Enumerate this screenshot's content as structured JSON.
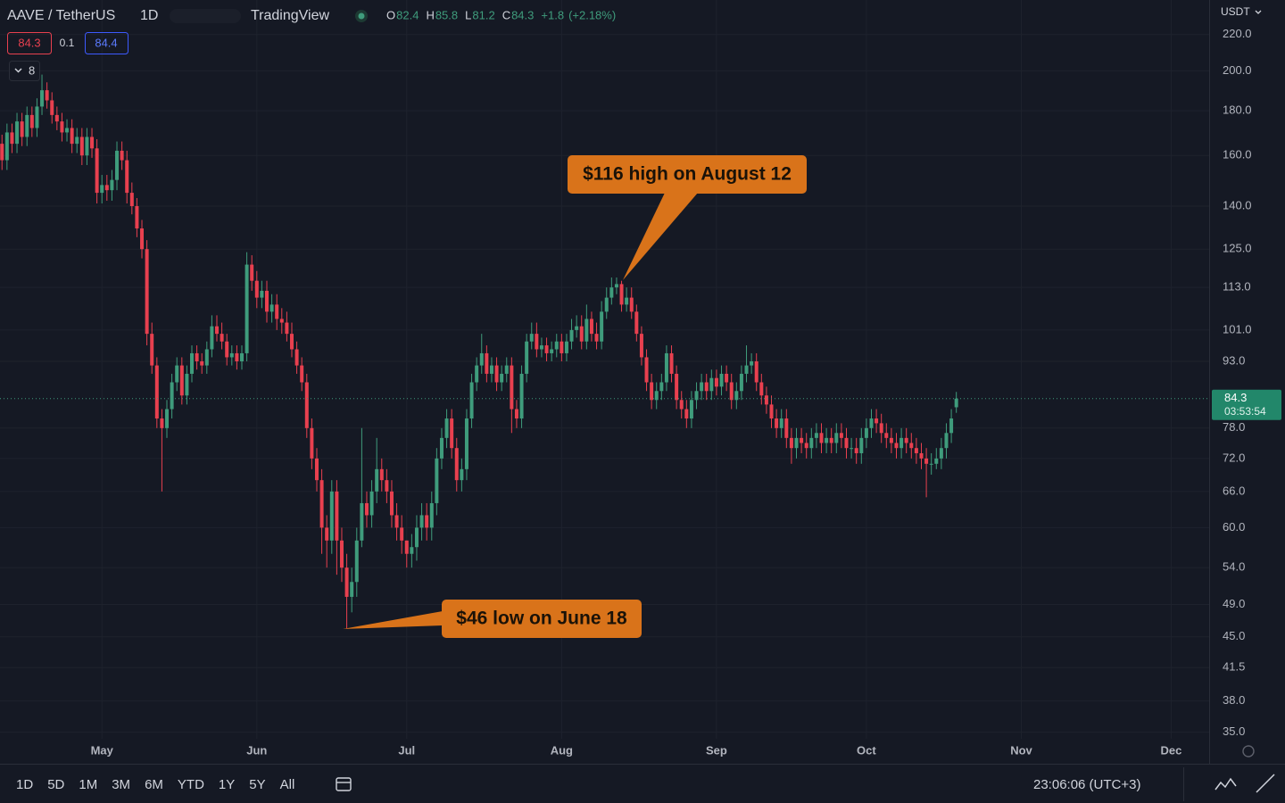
{
  "chart_data": {
    "type": "candlestick",
    "title": "AAVE / TetherUS",
    "interval": "1D",
    "source": "TradingView",
    "legend_values": [
      {
        "label": "O",
        "value": 82.4
      },
      {
        "label": "H",
        "value": 85.8
      },
      {
        "label": "L",
        "value": 81.2
      },
      {
        "label": "C",
        "value": 84.3
      }
    ],
    "change": {
      "value": 1.8,
      "label": "+1.8"
    },
    "change_percent": {
      "value": 2.18,
      "label": "(+2.18%)"
    },
    "sell_price": 84.3,
    "spread": 0.1,
    "buy_price": 84.4,
    "indicator_count": 8,
    "currency": "USDT",
    "log_scale": true,
    "grid": true,
    "up_color": "#3f9c7c",
    "down_color": "#e8404f",
    "last_price": 84.3,
    "countdown": "03:53:54",
    "ylim": [
      34.4,
      241
    ],
    "yticks": [
      {
        "value": 35,
        "label": "35.0"
      },
      {
        "value": 38,
        "label": "38.0"
      },
      {
        "value": 41.5,
        "label": "41.5"
      },
      {
        "value": 45,
        "label": "45.0"
      },
      {
        "value": 49,
        "label": "49.0"
      },
      {
        "value": 54,
        "label": "54.0"
      },
      {
        "value": 60,
        "label": "60.0"
      },
      {
        "value": 66,
        "label": "66.0"
      },
      {
        "value": 72,
        "label": "72.0"
      },
      {
        "value": 78,
        "label": "78.0"
      },
      {
        "value": 93,
        "label": "93.0"
      },
      {
        "value": 101,
        "label": "101.0"
      },
      {
        "value": 113,
        "label": "113.0"
      },
      {
        "value": 125,
        "label": "125.0"
      },
      {
        "value": 140,
        "label": "140.0"
      },
      {
        "value": 160,
        "label": "160.0"
      },
      {
        "value": 180,
        "label": "180.0"
      },
      {
        "value": 200,
        "label": "200.0"
      },
      {
        "value": 220,
        "label": "220.0"
      }
    ],
    "xlim": [
      -0.4,
      241.6
    ],
    "xticks": [
      {
        "value": 20,
        "label": "May"
      },
      {
        "value": 51,
        "label": "Jun"
      },
      {
        "value": 81,
        "label": "Jul"
      },
      {
        "value": 112,
        "label": "Aug"
      },
      {
        "value": 143,
        "label": "Sep"
      },
      {
        "value": 173,
        "label": "Oct"
      },
      {
        "value": 204,
        "label": "Nov"
      },
      {
        "value": 234,
        "label": "Dec"
      }
    ],
    "open": [
      165,
      158,
      170,
      165,
      175,
      168,
      178,
      172,
      182,
      190,
      185,
      178,
      175,
      170,
      172,
      165,
      168,
      160,
      168,
      163,
      145,
      148,
      146,
      150,
      162,
      158,
      145,
      140,
      132,
      125,
      100,
      92,
      80,
      78,
      82,
      88,
      92,
      85,
      90,
      95,
      93,
      92,
      96,
      102,
      100,
      98,
      94,
      95,
      93,
      95,
      120,
      115,
      110,
      112,
      106,
      108,
      104,
      103,
      100,
      96,
      92,
      88,
      78,
      72,
      68,
      60,
      58,
      66,
      58,
      54,
      50,
      52,
      58,
      64,
      62,
      66,
      70,
      68,
      66,
      62,
      60,
      58,
      56,
      57,
      60,
      62,
      60,
      64,
      72,
      76,
      80,
      74,
      68,
      70,
      80,
      88,
      92,
      95,
      90,
      92,
      88,
      90,
      92,
      82,
      80,
      90,
      98,
      100,
      96,
      97,
      95,
      96,
      98,
      95,
      98,
      101,
      102,
      98,
      104,
      100,
      98,
      106,
      110,
      113,
      114,
      108,
      110,
      106,
      100,
      94,
      88,
      84,
      86,
      88,
      95,
      90,
      84,
      82,
      80,
      84,
      86,
      88,
      86,
      89,
      87,
      90,
      88,
      84,
      86,
      90,
      92,
      93,
      88,
      85,
      83,
      80,
      78,
      80,
      76,
      74,
      76,
      75,
      74,
      76,
      77,
      75,
      76,
      75,
      77,
      76,
      74,
      74,
      73,
      76,
      78,
      80,
      79,
      77,
      76,
      75,
      74,
      76,
      75,
      74,
      73,
      72,
      71,
      71,
      72,
      74,
      77,
      82.4
    ],
    "high": [
      169,
      174,
      174,
      179,
      179,
      182,
      182,
      186,
      198,
      194,
      189,
      182,
      179,
      176,
      176,
      172,
      172,
      172,
      172,
      167,
      152,
      152,
      154,
      166,
      166,
      162,
      149,
      143,
      135,
      128,
      103,
      94,
      82,
      84,
      90,
      94,
      94,
      92,
      97,
      97,
      95,
      98,
      105,
      105,
      103,
      100,
      97,
      97,
      97,
      124,
      123,
      118,
      115,
      115,
      111,
      111,
      107,
      106,
      103,
      98,
      94,
      90,
      80,
      74,
      70,
      62,
      68,
      68,
      60,
      56,
      54,
      60,
      78,
      66,
      68,
      76,
      72,
      70,
      68,
      64,
      62,
      58,
      59,
      62,
      64,
      64,
      66,
      74,
      78,
      82,
      82,
      76,
      72,
      82,
      90,
      94,
      100,
      97,
      94,
      94,
      92,
      94,
      94,
      84,
      92,
      100,
      103,
      103,
      99,
      99,
      98,
      100,
      100,
      100,
      104,
      105,
      105,
      108,
      106,
      103,
      109,
      113,
      116,
      116,
      115,
      113,
      113,
      108,
      102,
      96,
      90,
      88,
      90,
      97,
      97,
      92,
      86,
      84,
      86,
      88,
      90,
      90,
      91,
      91,
      92,
      92,
      90,
      88,
      92,
      97,
      95,
      95,
      90,
      87,
      85,
      82,
      82,
      82,
      78,
      78,
      78,
      77,
      78,
      79,
      79,
      78,
      78,
      79,
      79,
      78,
      76,
      76,
      78,
      80,
      82,
      82,
      81,
      79,
      78,
      77,
      78,
      78,
      77,
      76,
      75,
      74,
      73,
      74,
      76,
      79,
      82,
      85.8
    ],
    "low": [
      154,
      154,
      161,
      161,
      164,
      164,
      168,
      168,
      178,
      181,
      174,
      171,
      166,
      166,
      161,
      161,
      156,
      156,
      159,
      141,
      141,
      142,
      142,
      146,
      154,
      141,
      137,
      129,
      122,
      97,
      90,
      78,
      66,
      76,
      80,
      86,
      83,
      83,
      88,
      91,
      90,
      90,
      94,
      98,
      96,
      92,
      92,
      91,
      91,
      93,
      112,
      107,
      107,
      103,
      103,
      101,
      100,
      98,
      94,
      90,
      86,
      76,
      70,
      66,
      56,
      54,
      56,
      53,
      52,
      46,
      48,
      50,
      57,
      60,
      60,
      64,
      66,
      64,
      60,
      58,
      56,
      54,
      54,
      55,
      58,
      58,
      58,
      62,
      70,
      74,
      72,
      66,
      66,
      68,
      78,
      86,
      90,
      88,
      88,
      86,
      86,
      88,
      77,
      78,
      78,
      88,
      96,
      94,
      94,
      93,
      93,
      94,
      93,
      93,
      96,
      99,
      96,
      96,
      98,
      96,
      96,
      104,
      108,
      111,
      106,
      106,
      104,
      98,
      92,
      86,
      82,
      82,
      84,
      86,
      88,
      82,
      80,
      78,
      78,
      82,
      84,
      84,
      84,
      85,
      85,
      86,
      82,
      82,
      84,
      88,
      90,
      86,
      83,
      81,
      78,
      76,
      76,
      74,
      71,
      72,
      73,
      72,
      72,
      74,
      73,
      73,
      73,
      73,
      74,
      72,
      72,
      71,
      71,
      74,
      76,
      77,
      75,
      74,
      73,
      72,
      72,
      73,
      72,
      71,
      70,
      65,
      69,
      70,
      70,
      72,
      75,
      81.2
    ],
    "close": [
      158,
      170,
      165,
      175,
      168,
      178,
      172,
      182,
      190,
      185,
      178,
      175,
      170,
      172,
      165,
      168,
      160,
      168,
      163,
      145,
      148,
      146,
      150,
      162,
      158,
      145,
      140,
      132,
      125,
      100,
      92,
      80,
      78,
      82,
      88,
      92,
      85,
      90,
      95,
      93,
      92,
      96,
      102,
      100,
      98,
      94,
      95,
      93,
      95,
      120,
      115,
      110,
      112,
      106,
      108,
      104,
      103,
      100,
      96,
      92,
      88,
      78,
      72,
      68,
      60,
      58,
      66,
      58,
      54,
      50,
      52,
      58,
      64,
      62,
      66,
      70,
      68,
      66,
      62,
      60,
      58,
      56,
      57,
      60,
      62,
      60,
      64,
      72,
      76,
      80,
      74,
      68,
      70,
      80,
      88,
      92,
      95,
      90,
      92,
      88,
      90,
      92,
      82,
      80,
      90,
      98,
      100,
      96,
      97,
      95,
      96,
      98,
      95,
      98,
      101,
      102,
      98,
      104,
      100,
      98,
      106,
      110,
      113,
      114,
      108,
      110,
      106,
      100,
      94,
      88,
      84,
      86,
      88,
      95,
      90,
      84,
      82,
      80,
      84,
      86,
      88,
      86,
      89,
      87,
      90,
      88,
      84,
      86,
      90,
      92,
      93,
      88,
      85,
      83,
      80,
      78,
      80,
      76,
      74,
      76,
      75,
      74,
      76,
      77,
      75,
      76,
      75,
      77,
      76,
      74,
      74,
      73,
      76,
      78,
      80,
      79,
      77,
      76,
      75,
      74,
      76,
      75,
      74,
      73,
      72,
      71,
      71,
      72,
      74,
      77,
      80,
      84.3
    ],
    "annotations": [
      "$116 high on August 12",
      "$46 low on June 18"
    ],
    "range_buttons": [
      "1D",
      "5D",
      "1M",
      "3M",
      "6M",
      "YTD",
      "1Y",
      "5Y",
      "All"
    ],
    "clock": "23:06:06 (UTC+3)"
  }
}
